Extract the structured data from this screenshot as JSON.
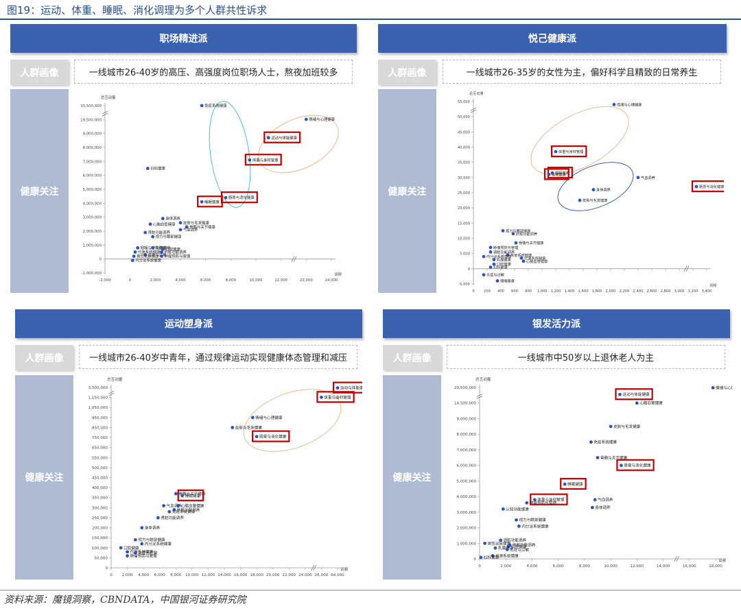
{
  "figure_title": "图19：运动、体重、睡眠、消化调理为多个人群共性诉求",
  "source": "资料来源：魔镜洞察，CBNDATA，中国银河证券研究院",
  "colors": {
    "header": "#3b62b0",
    "dot": "#2b55c4",
    "highlight": "#c00000",
    "side": "#aebbd3"
  },
  "chart_data": [
    {
      "type": "scatter",
      "panel_title": "职场精进派",
      "tag": "人群画像",
      "persona": "一线城市26-40岁的高压、高强度岗位职场人士，熬夜加班较多",
      "side_label": "健康关注",
      "ylabel": "总互动量",
      "xlabel": "词频",
      "x_ticks": [
        "-2,000",
        "0",
        "2,000",
        "4,000",
        "6,000",
        "8,000",
        "10,000",
        "12,000",
        "22,000",
        "24,000"
      ],
      "y_ticks": [
        "-1,000,000",
        "0",
        "1,000,000",
        "2,000,000",
        "3,000,000",
        "4,000,000",
        "5,000,000",
        "6,000,000",
        "7,000,000",
        "8,000,000",
        "9,000,000",
        "19,500,000",
        "33,500,000"
      ],
      "points": [
        {
          "label": "免疫系统健康",
          "x": 5700,
          "y": 33500000
        },
        {
          "label": "情绪与心理健康",
          "x": 22000,
          "y": 19700000
        },
        {
          "label": "运动与体能健康",
          "x": 11000,
          "y": 8700000,
          "highlight": true
        },
        {
          "label": "体重与身材管理",
          "x": 9500,
          "y": 7100000,
          "highlight": true
        },
        {
          "label": "妇科健康",
          "x": 1400,
          "y": 6500000
        },
        {
          "label": "肠胃与消化健康",
          "x": 7600,
          "y": 4400000,
          "highlight": true
        },
        {
          "label": "睡眠健康",
          "x": 5700,
          "y": 4100000,
          "highlight": true
        },
        {
          "label": "身体调养",
          "x": 2600,
          "y": 2900000
        },
        {
          "label": "皮肤与毛发健康",
          "x": 4000,
          "y": 2600000
        },
        {
          "label": "心脑血管健康",
          "x": 1600,
          "y": 2500000
        },
        {
          "label": "骨骼与关节健康",
          "x": 4500,
          "y": 2300000
        },
        {
          "label": "气血调养",
          "x": 4000,
          "y": 2100000
        },
        {
          "label": "肾脏功能调养",
          "x": 1200,
          "y": 1900000
        },
        {
          "label": "视力与眼部健康",
          "x": 1800,
          "y": 1600000
        },
        {
          "label": "咽喉与呼吸健康",
          "x": 600,
          "y": 800000
        },
        {
          "label": "乳腺健康",
          "x": 1800,
          "y": 800000
        },
        {
          "label": "口腔健康",
          "x": 2600,
          "y": 700000
        },
        {
          "label": "代谢系统健康",
          "x": 400,
          "y": 500000
        },
        {
          "label": "肝脏功能调养",
          "x": 2500,
          "y": 500000
        },
        {
          "label": "炎症与过敏",
          "x": 1200,
          "y": 300000
        },
        {
          "label": "男性泌尿健康",
          "x": 300,
          "y": 200000
        },
        {
          "label": "肿瘤预防与管理",
          "x": 2500,
          "y": 200000
        },
        {
          "label": "内分泌系统健康",
          "x": 200,
          "y": -100000
        }
      ]
    },
    {
      "type": "scatter",
      "panel_title": "悦己健康派",
      "tag": "人群画像",
      "persona": "一线城市26-35岁的女性为主，偏好科学且精致的日常养生",
      "side_label": "健康关注",
      "ylabel": "总互动量",
      "xlabel": "词频",
      "x_ticks": [
        "0",
        "200",
        "400",
        "600",
        "800",
        "1,000",
        "1,200",
        "1,400",
        "1,600",
        "1,800",
        "2,000",
        "2,200",
        "2,400",
        "2,600",
        "2,800",
        "3,000",
        "3,200",
        "3,400"
      ],
      "y_ticks": [
        "-5,000",
        "0",
        "5,000",
        "10,000",
        "15,000",
        "20,000",
        "25,000",
        "30,000",
        "35,000",
        "40,000",
        "45,000",
        "50,000",
        "55,000"
      ],
      "points": [
        {
          "label": "情绪与心理健康",
          "x": 2050,
          "y": 54000
        },
        {
          "label": "体重与身材管理",
          "x": 1200,
          "y": 38500,
          "highlight": true
        },
        {
          "label": "睡眠健康",
          "x": 1150,
          "y": 31500,
          "highlight": true
        },
        {
          "label": "运动健康",
          "x": 1100,
          "y": 31000,
          "highlight": true
        },
        {
          "label": "气血调养",
          "x": 2400,
          "y": 30000
        },
        {
          "label": "肠胃与消化健康",
          "x": 3250,
          "y": 27000,
          "highlight": true
        },
        {
          "label": "身体调养",
          "x": 1750,
          "y": 26000
        },
        {
          "label": "皮肤与毛发健康",
          "x": 1550,
          "y": 22500
        },
        {
          "label": "视力与眼部健康",
          "x": 430,
          "y": 12500
        },
        {
          "label": "肝脏功能调养",
          "x": 580,
          "y": 11500
        },
        {
          "label": "骨骼与关节健康",
          "x": 620,
          "y": 8500
        },
        {
          "label": "肿瘤预防与管理",
          "x": 250,
          "y": 7000
        },
        {
          "label": "调脏功能调养",
          "x": 250,
          "y": 5500
        },
        {
          "label": "免疫系统健康",
          "x": 500,
          "y": 4500
        },
        {
          "label": "内分泌系统健康",
          "x": 150,
          "y": 4000
        },
        {
          "label": "代谢系统健康",
          "x": 700,
          "y": 3500
        },
        {
          "label": "乳腺健康",
          "x": 300,
          "y": 3000
        },
        {
          "label": "心脑血管健康",
          "x": 730,
          "y": 2500
        },
        {
          "label": "口腔健康",
          "x": 300,
          "y": 1500
        },
        {
          "label": "妇科健康",
          "x": 250,
          "y": 500
        },
        {
          "label": "炎症与过敏",
          "x": 150,
          "y": -2000
        },
        {
          "label": "咽喉健康",
          "x": 350,
          "y": -4000
        }
      ]
    },
    {
      "type": "scatter",
      "panel_title": "运动塑身派",
      "tag": "人群画像",
      "persona": "一线城市26-40岁中青年，通过规律运动实现健康体态管理和减压",
      "side_label": "健康关注",
      "ylabel": "总互动量",
      "xlabel": "词频",
      "x_ticks": [
        "0",
        "2,000",
        "4,000",
        "6,000",
        "8,000",
        "10,000",
        "12,000",
        "14,000",
        "16,000",
        "18,000",
        "20,000",
        "22,000",
        "24,000",
        "26,000",
        "64,000"
      ],
      "y_ticks": [
        "0",
        "50,000",
        "100,000",
        "150,000",
        "200,000",
        "250,000",
        "300,000",
        "350,000",
        "400,000",
        "450,000",
        "500,000",
        "550,000",
        "650,000",
        "750,000",
        "850,000",
        "950,000",
        "1,050,000",
        "1,150,000",
        "3,500,000"
      ],
      "points": [
        {
          "label": "运动与体能健康",
          "x": 64000,
          "y": 3400000,
          "highlight": true
        },
        {
          "label": "体重与身材管理",
          "x": 26000,
          "y": 1200000,
          "highlight": true
        },
        {
          "label": "情绪与心理健康",
          "x": 17500,
          "y": 950000
        },
        {
          "label": "皮肤与毛发健康",
          "x": 15000,
          "y": 850000
        },
        {
          "label": "肠胃与消化健康",
          "x": 18000,
          "y": 760000,
          "highlight": true
        },
        {
          "label": "骨骼与关节健康",
          "x": 8000,
          "y": 370000
        },
        {
          "label": "睡眠健康",
          "x": 8800,
          "y": 360000,
          "highlight": true
        },
        {
          "label": "气血调养",
          "x": 6500,
          "y": 310000
        },
        {
          "label": "心脑血管健康",
          "x": 8300,
          "y": 310000
        },
        {
          "label": "肝脏功能调养",
          "x": 7800,
          "y": 290000
        },
        {
          "label": "免疫系统健康",
          "x": 7200,
          "y": 280000
        },
        {
          "label": "肾脏功能调养",
          "x": 5800,
          "y": 250000
        },
        {
          "label": "身体调养",
          "x": 3800,
          "y": 200000
        },
        {
          "label": "视力与眼部健康",
          "x": 3000,
          "y": 140000
        },
        {
          "label": "内分泌系统健康",
          "x": 3800,
          "y": 120000
        },
        {
          "label": "口腔健康",
          "x": 1200,
          "y": 100000
        },
        {
          "label": "代谢系统健康",
          "x": 2000,
          "y": 80000
        },
        {
          "label": "炎症与过敏",
          "x": 3000,
          "y": 75000
        },
        {
          "label": "肿瘤预防与管理",
          "x": 2000,
          "y": 60000
        }
      ]
    },
    {
      "type": "scatter",
      "panel_title": "银发活力派",
      "tag": "人群画像",
      "persona": "一线城市中50岁以上退休老人为主",
      "side_label": "健康关注",
      "ylabel": "总互动量",
      "xlabel": "词频",
      "x_ticks": [
        "0",
        "2,000",
        "4,000",
        "6,000",
        "8,000",
        "10,000",
        "12,000",
        "14,000",
        "16,000",
        "18,000"
      ],
      "y_ticks": [
        "0",
        "1,000,000",
        "2,000,000",
        "3,000,000",
        "4,000,000",
        "5,000,000",
        "6,000,000",
        "7,000,000",
        "8,000,000",
        "9,000,000",
        "14,500,000",
        "20,500,000"
      ],
      "points": [
        {
          "label": "情绪与心理健康",
          "x": 17800,
          "y": 20400000
        },
        {
          "label": "运动与体能健康",
          "x": 10700,
          "y": 17800000,
          "highlight": true
        },
        {
          "label": "心脑血管健康",
          "x": 12000,
          "y": 14500000
        },
        {
          "label": "皮肤与毛发健康",
          "x": 10000,
          "y": 8500000
        },
        {
          "label": "免疫系统健康",
          "x": 8500,
          "y": 7500000
        },
        {
          "label": "骨骼与关节健康",
          "x": 9000,
          "y": 6500000
        },
        {
          "label": "肠胃与消化健康",
          "x": 10800,
          "y": 6000000,
          "highlight": true
        },
        {
          "label": "睡眠健康",
          "x": 6500,
          "y": 4800000,
          "highlight": true
        },
        {
          "label": "体重与身材管理",
          "x": 4200,
          "y": 3800000,
          "highlight": true
        },
        {
          "label": "气血调养",
          "x": 8800,
          "y": 3800000
        },
        {
          "label": "肿瘤预防与管理",
          "x": 3600,
          "y": 3600000
        },
        {
          "label": "身体调养",
          "x": 8600,
          "y": 3300000
        },
        {
          "label": "认知功能健康",
          "x": 1800,
          "y": 3200000
        },
        {
          "label": "视力与眼部健康",
          "x": 2800,
          "y": 2500000
        },
        {
          "label": "内分泌系统健康",
          "x": 3000,
          "y": 2100000
        },
        {
          "label": "调脏功能调养",
          "x": 1600,
          "y": 1200000
        },
        {
          "label": "男性泌尿健康",
          "x": 400,
          "y": 1000000
        },
        {
          "label": "肝脏功能调养",
          "x": 2300,
          "y": 900000
        },
        {
          "label": "口腔健康",
          "x": 2200,
          "y": 800000
        },
        {
          "label": "乳腺健康",
          "x": 1200,
          "y": 700000
        },
        {
          "label": "炎症与过敏",
          "x": 2100,
          "y": 600000
        },
        {
          "label": "代谢系统健康",
          "x": 1000,
          "y": 200000
        },
        {
          "label": "妇科健康",
          "x": 100,
          "y": 100000
        }
      ]
    }
  ]
}
